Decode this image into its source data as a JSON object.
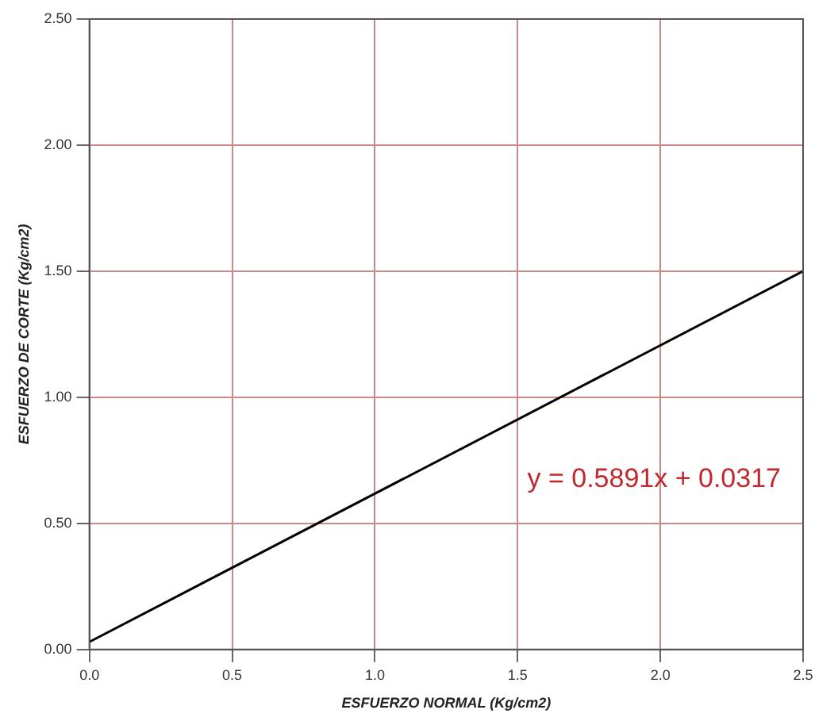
{
  "chart_data": {
    "type": "line",
    "xlabel": "ESFUERZO NORMAL (Kg/cm2)",
    "ylabel": "ESFUERZO DE CORTE (Kg/cm2)",
    "series": [
      {
        "x": [
          0,
          2.5
        ],
        "values": [
          0.03,
          1.5
        ],
        "color": "#000000"
      }
    ],
    "xlim": [
      0,
      2.5
    ],
    "xticks": [
      {
        "value": 0,
        "label": "0.0"
      },
      {
        "value": 0.5,
        "label": "0.5"
      },
      {
        "value": 1,
        "label": "1.0"
      },
      {
        "value": 1.5,
        "label": "1.5"
      },
      {
        "value": 2,
        "label": "2.0"
      },
      {
        "value": 2.5,
        "label": "2.5"
      }
    ],
    "ylim": [
      0,
      2.5
    ],
    "yticks": [
      {
        "value": 0,
        "label": "0.00"
      },
      {
        "value": 0.5,
        "label": "0.50"
      },
      {
        "value": 1,
        "label": "1.00"
      },
      {
        "value": 1.5,
        "label": "1.50"
      },
      {
        "value": 2,
        "label": "2.00"
      },
      {
        "value": 2.5,
        "label": "2.50"
      }
    ],
    "grid": true,
    "legend": false,
    "marker": "none",
    "line_style": "solid",
    "annotations": [
      "y = 0.5891x + 0.0317"
    ]
  }
}
